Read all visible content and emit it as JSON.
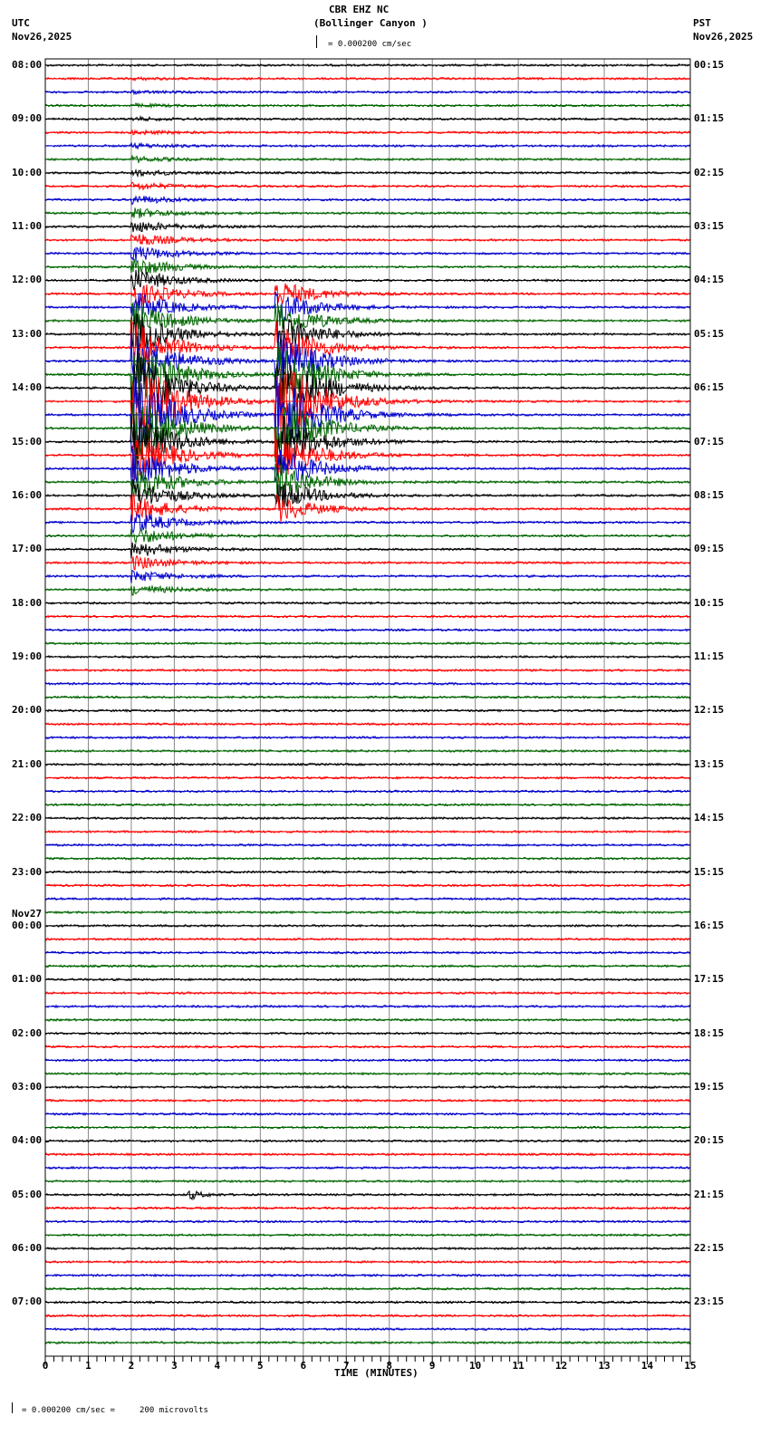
{
  "header": {
    "station": "CBR EHZ NC",
    "location": "(Bollinger Canyon )",
    "left_tz": "UTC",
    "left_date": "Nov26,2025",
    "right_tz": "PST",
    "right_date": "Nov26,2025",
    "scale_text": "= 0.000200 cm/sec"
  },
  "footer": {
    "scale_text": "= 0.000200 cm/sec =     200 microvolts",
    "xlabel": "TIME (MINUTES)"
  },
  "chart_data": {
    "type": "line",
    "title": "CBR EHZ NC (Bollinger Canyon )",
    "xlabel": "TIME (MINUTES)",
    "ylabel": "",
    "xlim": [
      0,
      15
    ],
    "x_ticks": [
      "0",
      "1",
      "2",
      "3",
      "4",
      "5",
      "6",
      "7",
      "8",
      "9",
      "10",
      "11",
      "12",
      "13",
      "14",
      "15"
    ],
    "grid": true,
    "rows_per_hour": 4,
    "trace_colors": [
      "#000000",
      "#ff0000",
      "#0000cc",
      "#006600"
    ],
    "utc_labels": [
      "08:00",
      "09:00",
      "10:00",
      "11:00",
      "12:00",
      "13:00",
      "14:00",
      "15:00",
      "16:00",
      "17:00",
      "18:00",
      "19:00",
      "20:00",
      "21:00",
      "22:00",
      "23:00",
      "00:00",
      "01:00",
      "02:00",
      "03:00",
      "04:00",
      "05:00",
      "06:00",
      "07:00"
    ],
    "utc_date_change": {
      "label": "Nov27",
      "before_hour_index": 16
    },
    "pst_labels": [
      "00:15",
      "01:15",
      "02:15",
      "03:15",
      "04:15",
      "05:15",
      "06:15",
      "07:15",
      "08:15",
      "09:15",
      "10:15",
      "11:15",
      "12:15",
      "13:15",
      "14:15",
      "15:15",
      "16:15",
      "17:15",
      "18:15",
      "19:15",
      "20:15",
      "21:15",
      "22:15",
      "23:15"
    ],
    "events": [
      {
        "description": "Large earthquake, red traces ~13:00-16:00 UTC",
        "start_minute": 2.0,
        "row_range": [
          1,
          39
        ],
        "peak_row": 25,
        "color": "#ff0000"
      },
      {
        "description": "Secondary earthquake arrival",
        "start_minute": 5.35,
        "row_range": [
          17,
          33
        ],
        "peak_row": 25,
        "color": "#ff0000"
      },
      {
        "description": "Local bursts 05:00 UTC black trace",
        "start_minute": 3.3,
        "row_range": [
          84,
          84
        ],
        "color": "#000000"
      }
    ]
  }
}
